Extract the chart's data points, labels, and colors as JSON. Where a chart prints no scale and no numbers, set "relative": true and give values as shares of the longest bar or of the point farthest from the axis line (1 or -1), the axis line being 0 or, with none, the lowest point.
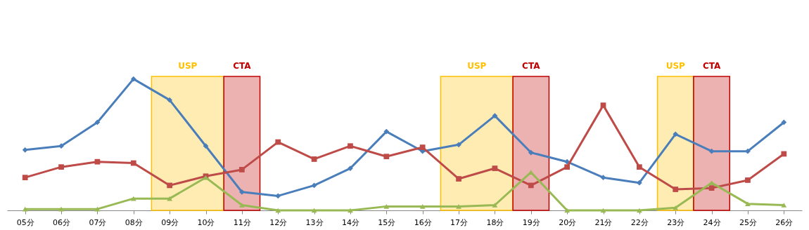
{
  "chart_data": {
    "type": "line",
    "relative": true,
    "categories": [
      "05分",
      "06分",
      "07分",
      "08分",
      "09分",
      "10分",
      "11分",
      "12分",
      "13分",
      "14分",
      "15分",
      "16分",
      "17分",
      "18分",
      "19分",
      "20分",
      "21分",
      "22分",
      "23分",
      "24分",
      "25分",
      "26分"
    ],
    "series": [
      {
        "color": "#4a7ebb",
        "marker": "diamond",
        "values": [
          0.46,
          0.49,
          0.67,
          1,
          0.84,
          0.49,
          0.14,
          0.11,
          0.19,
          0.32,
          0.6,
          0.45,
          0.5,
          0.72,
          0.44,
          0.37,
          0.25,
          0.21,
          0.58,
          0.45,
          0.45,
          0.67
        ]
      },
      {
        "color": "#be4b48",
        "marker": "square",
        "values": [
          0.25,
          0.33,
          0.37,
          0.36,
          0.19,
          0.26,
          0.31,
          0.52,
          0.39,
          0.49,
          0.41,
          0.48,
          0.24,
          0.32,
          0.19,
          0.33,
          0.8,
          0.33,
          0.16,
          0.17,
          0.23,
          0.43
        ]
      },
      {
        "color": "#98b954",
        "marker": "triangle",
        "values": [
          0.01,
          0.01,
          0.01,
          0.09,
          0.09,
          0.25,
          0.04,
          0,
          0,
          0,
          0.03,
          0.03,
          0.03,
          0.04,
          0.29,
          0,
          0,
          0,
          0.02,
          0.21,
          0.05,
          0.04
        ]
      }
    ],
    "bands": [
      {
        "axis": "x",
        "from": "09分",
        "to": "10分",
        "label": "USP",
        "color": "#ffc000"
      },
      {
        "axis": "x",
        "from": "11分",
        "to": "11分",
        "label": "CTA",
        "color": "#c00000"
      },
      {
        "axis": "x",
        "from": "17分",
        "to": "18分",
        "label": "USP",
        "color": "#ffc000"
      },
      {
        "axis": "x",
        "from": "19分",
        "to": "19分",
        "label": "CTA",
        "color": "#c00000"
      },
      {
        "axis": "x",
        "from": "23分",
        "to": "23分",
        "label": "USP",
        "color": "#ffc000"
      },
      {
        "axis": "x",
        "from": "24分",
        "to": "24分",
        "label": "CTA",
        "color": "#c00000"
      }
    ],
    "line_style": "solid"
  }
}
